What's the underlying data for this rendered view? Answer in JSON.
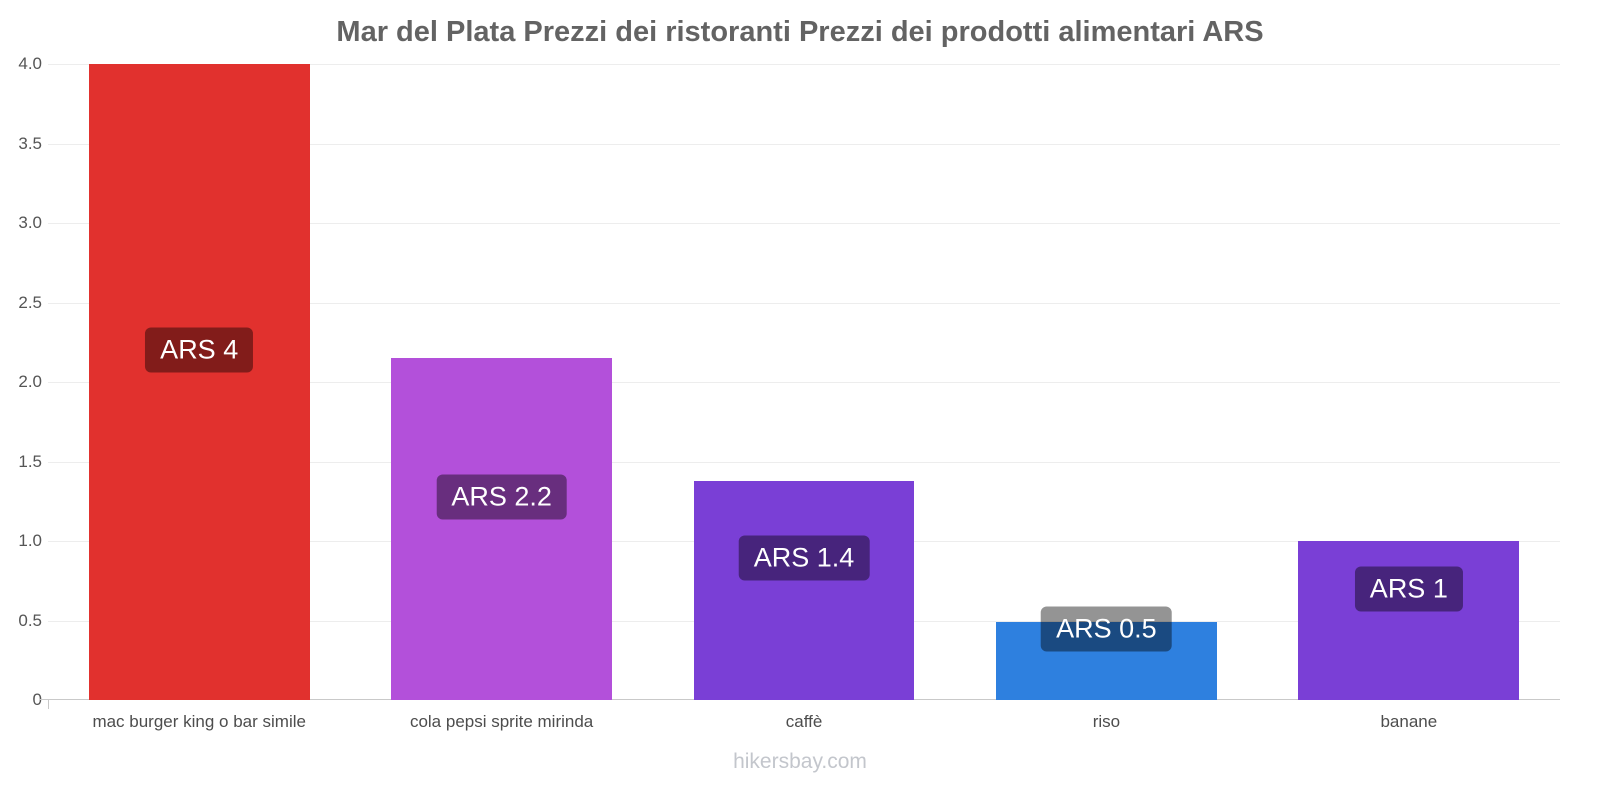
{
  "chart_data": {
    "type": "bar",
    "title": "Mar del Plata Prezzi dei ristoranti Prezzi dei prodotti alimentari ARS",
    "categories": [
      "mac burger king o bar simile",
      "cola pepsi sprite mirinda",
      "caffè",
      "riso",
      "banane"
    ],
    "values": [
      4,
      2.15,
      1.38,
      0.49,
      1.0
    ],
    "value_labels": [
      "ARS 4",
      "ARS 2.2",
      "ARS 1.4",
      "ARS 0.5",
      "ARS 1"
    ],
    "bar_colors": [
      "#e1312e",
      "#b350da",
      "#7a3fd6",
      "#2e80df",
      "#7a3fd6"
    ],
    "label_bg": "rgba(0,0,0,0.42)",
    "ylim": [
      0,
      4
    ],
    "yticks": [
      "0",
      "0.5",
      "1.0",
      "1.5",
      "2.0",
      "2.5",
      "3.0",
      "3.5",
      "4.0"
    ],
    "grid": true,
    "legend": null,
    "footer": "hikersbay.com"
  }
}
